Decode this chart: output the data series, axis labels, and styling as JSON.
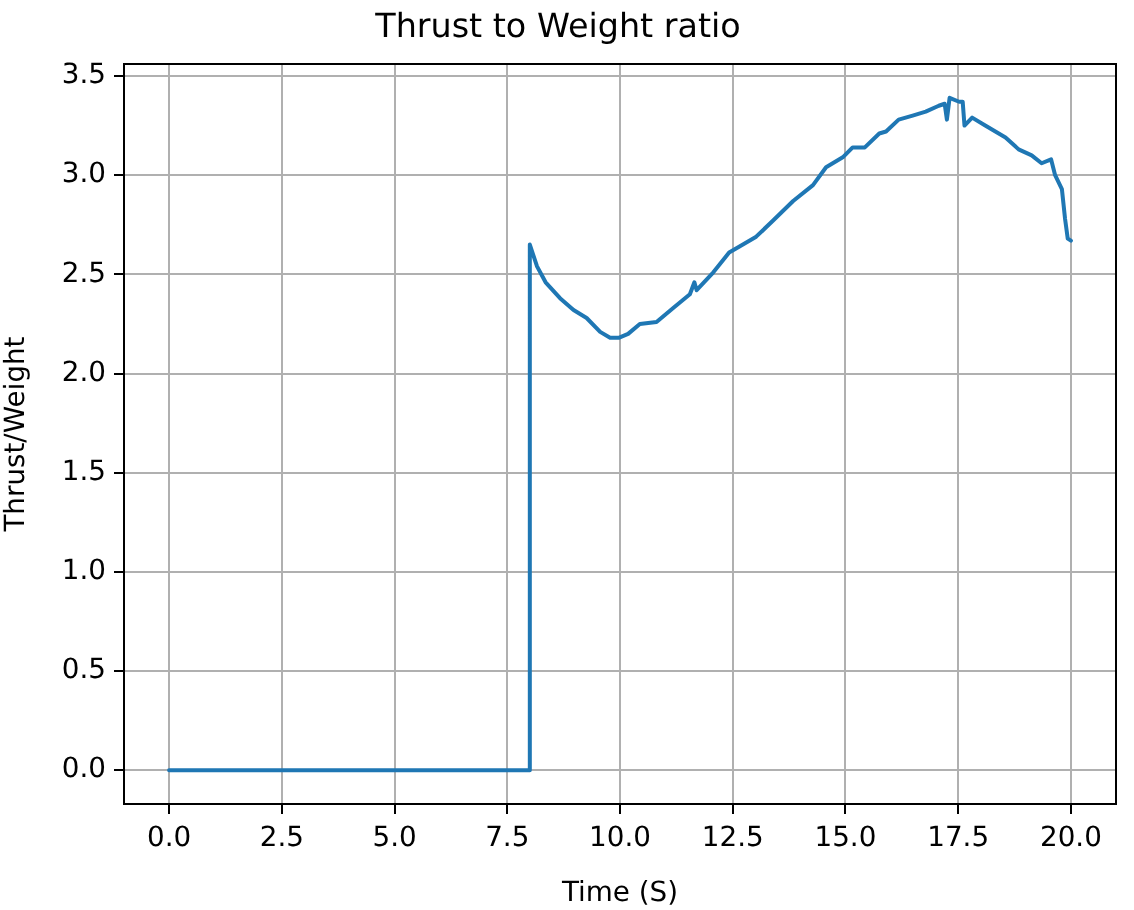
{
  "chart_data": {
    "type": "line",
    "title": "Thrust to Weight ratio",
    "xlabel": "Time (S)",
    "ylabel": "Thrust/Weight",
    "x": [
      0,
      8.0,
      8.0,
      8.16,
      8.35,
      8.67,
      8.97,
      9.26,
      9.56,
      9.78,
      9.97,
      10.18,
      10.44,
      10.81,
      11.18,
      11.55,
      11.65,
      11.7,
      12.07,
      12.42,
      12.65,
      13.02,
      13.39,
      13.84,
      14.28,
      14.57,
      14.94,
      15.16,
      15.43,
      15.75,
      15.9,
      16.18,
      16.49,
      16.78,
      17.07,
      17.2,
      17.25,
      17.31,
      17.52,
      17.6,
      17.64,
      17.81,
      18.1,
      18.55,
      18.84,
      19.13,
      19.35,
      19.56,
      19.65,
      19.8,
      19.87,
      19.93,
      20.0
    ],
    "series": [
      {
        "color": "#1f77b4",
        "values": [
          0,
          0,
          2.65,
          2.54,
          2.46,
          2.38,
          2.32,
          2.28,
          2.21,
          2.18,
          2.18,
          2.2,
          2.25,
          2.26,
          2.33,
          2.4,
          2.46,
          2.42,
          2.51,
          2.61,
          2.64,
          2.69,
          2.77,
          2.87,
          2.95,
          3.04,
          3.09,
          3.14,
          3.14,
          3.21,
          3.22,
          3.28,
          3.3,
          3.32,
          3.35,
          3.36,
          3.28,
          3.39,
          3.37,
          3.37,
          3.25,
          3.29,
          3.25,
          3.19,
          3.13,
          3.1,
          3.06,
          3.08,
          3.0,
          2.93,
          2.78,
          2.68,
          2.67
        ]
      }
    ],
    "xlim": [
      -1,
      21
    ],
    "ylim": [
      -0.17,
      3.56
    ],
    "xticks": [
      {
        "value": 0,
        "label": "0.0"
      },
      {
        "value": 2.5,
        "label": "2.5"
      },
      {
        "value": 5,
        "label": "5.0"
      },
      {
        "value": 7.5,
        "label": "7.5"
      },
      {
        "value": 10,
        "label": "10.0"
      },
      {
        "value": 12.5,
        "label": "12.5"
      },
      {
        "value": 15,
        "label": "15.0"
      },
      {
        "value": 17.5,
        "label": "17.5"
      },
      {
        "value": 20,
        "label": "20.0"
      }
    ],
    "yticks": [
      {
        "value": 0,
        "label": "0.0"
      },
      {
        "value": 0.5,
        "label": "0.5"
      },
      {
        "value": 1,
        "label": "1.0"
      },
      {
        "value": 1.5,
        "label": "1.5"
      },
      {
        "value": 2,
        "label": "2.0"
      },
      {
        "value": 2.5,
        "label": "2.5"
      },
      {
        "value": 3,
        "label": "3.0"
      },
      {
        "value": 3.5,
        "label": "3.5"
      }
    ],
    "grid": true
  }
}
